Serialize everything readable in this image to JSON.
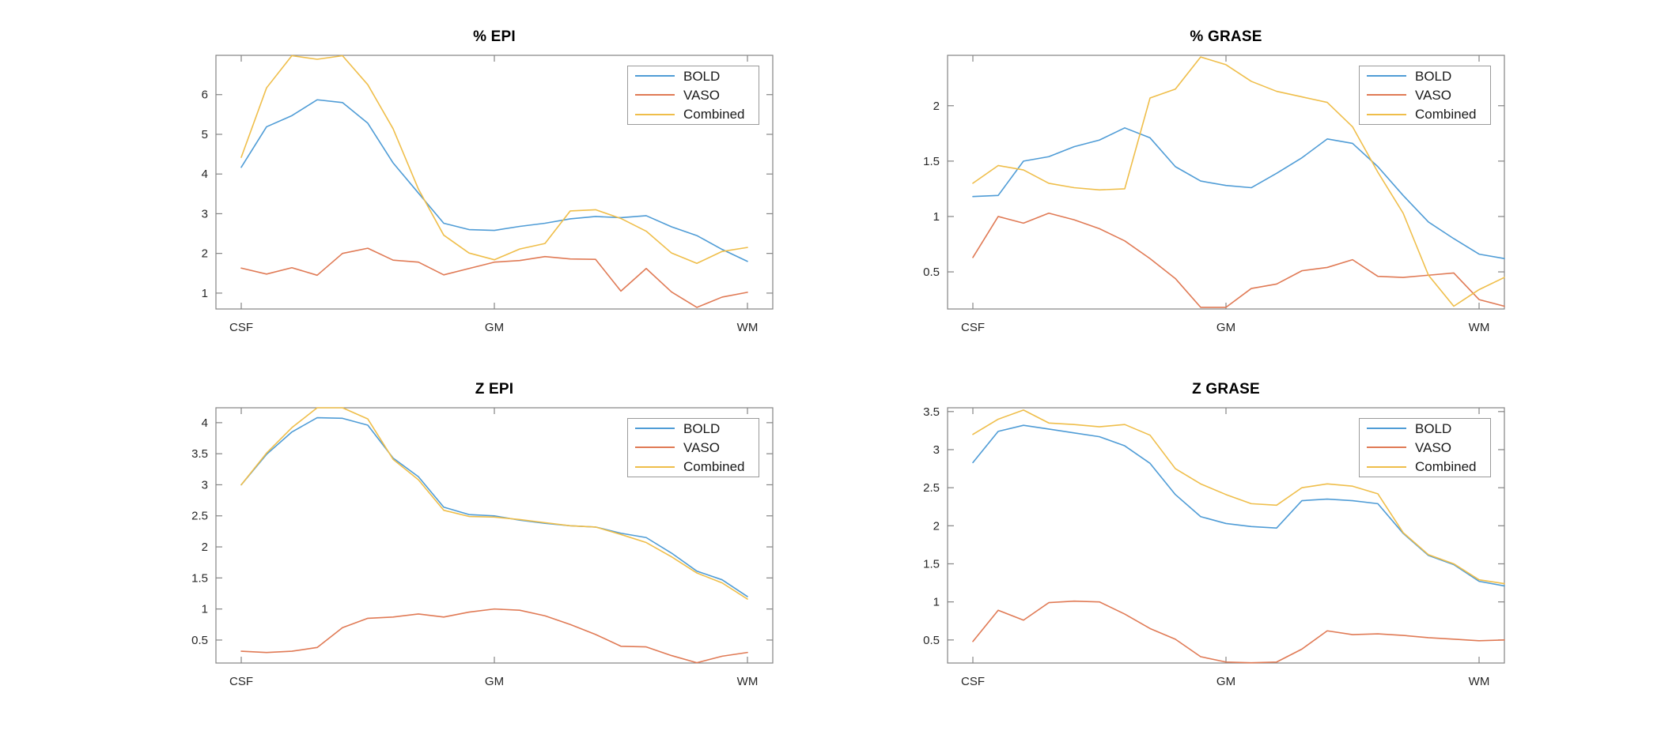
{
  "figure": {
    "background": "#ffffff",
    "axis_color": "#848484",
    "tick_label_color": "#262626",
    "title_color": "#000000",
    "legend_border_color": "#9a9a9a",
    "legend_labels": [
      "BOLD",
      "VASO",
      "Combined"
    ]
  },
  "chart_data": [
    {
      "type": "line",
      "title": "% EPI",
      "xlabel": "",
      "ylabel": "",
      "x_tick_labels": [
        "CSF",
        "GM",
        "WM"
      ],
      "x_tick_points": [
        1,
        11,
        21
      ],
      "xlim": [
        0,
        22
      ],
      "ylim": [
        0.6,
        6.99
      ],
      "y_ticks": [
        1,
        2,
        3,
        4,
        5,
        6
      ],
      "grid": false,
      "legend_position": "top-right",
      "series": [
        {
          "name": "BOLD",
          "color": "#4F9CD6",
          "values": [
            4.17,
            5.19,
            5.47,
            5.87,
            5.8,
            5.28,
            4.28,
            3.52,
            2.76,
            2.6,
            2.58,
            2.68,
            2.76,
            2.87,
            2.93,
            2.9,
            2.95,
            2.67,
            2.45,
            2.1,
            1.8
          ]
        },
        {
          "name": "VASO",
          "color": "#E07A55",
          "values": [
            1.63,
            1.48,
            1.64,
            1.45,
            2.0,
            2.13,
            1.83,
            1.78,
            1.46,
            1.62,
            1.78,
            1.82,
            1.92,
            1.86,
            1.85,
            1.05,
            1.62,
            1.03,
            0.64,
            0.9,
            1.02
          ]
        },
        {
          "name": "Combined",
          "color": "#EFBE4A",
          "values": [
            4.42,
            6.17,
            6.98,
            6.89,
            6.98,
            6.25,
            5.14,
            3.62,
            2.46,
            2.01,
            1.84,
            2.11,
            2.25,
            3.07,
            3.1,
            2.88,
            2.56,
            2.01,
            1.75,
            2.05,
            2.15
          ]
        }
      ]
    },
    {
      "type": "line",
      "title": "% GRASE",
      "xlabel": "",
      "ylabel": "",
      "x_tick_labels": [
        "CSF",
        "GM",
        "WM"
      ],
      "x_tick_points": [
        1,
        11,
        21
      ],
      "xlim": [
        0,
        22
      ],
      "ylim": [
        0.165,
        2.455
      ],
      "y_ticks": [
        0.5,
        1,
        1.5,
        2
      ],
      "grid": false,
      "legend_position": "top-right",
      "series": [
        {
          "name": "BOLD",
          "color": "#4F9CD6",
          "values": [
            1.18,
            1.19,
            1.5,
            1.54,
            1.63,
            1.69,
            1.8,
            1.71,
            1.45,
            1.32,
            1.28,
            1.26,
            1.39,
            1.53,
            1.7,
            1.66,
            1.45,
            1.19,
            0.95,
            0.8,
            0.66,
            0.62
          ]
        },
        {
          "name": "VASO",
          "color": "#E07A55",
          "values": [
            0.63,
            1.0,
            0.94,
            1.03,
            0.97,
            0.89,
            0.78,
            0.62,
            0.44,
            0.18,
            0.18,
            0.35,
            0.39,
            0.51,
            0.54,
            0.61,
            0.46,
            0.45,
            0.47,
            0.49,
            0.25,
            0.19
          ]
        },
        {
          "name": "Combined",
          "color": "#EFBE4A",
          "values": [
            1.3,
            1.46,
            1.42,
            1.3,
            1.26,
            1.24,
            1.25,
            2.07,
            2.15,
            2.44,
            2.37,
            2.22,
            2.13,
            2.08,
            2.03,
            1.81,
            1.4,
            1.03,
            0.47,
            0.19,
            0.34,
            0.45
          ]
        }
      ]
    },
    {
      "type": "line",
      "title": "Z EPI",
      "xlabel": "",
      "ylabel": "",
      "x_tick_labels": [
        "CSF",
        "GM",
        "WM"
      ],
      "x_tick_points": [
        1,
        11,
        21
      ],
      "xlim": [
        0,
        22
      ],
      "ylim": [
        0.13,
        4.24
      ],
      "y_ticks": [
        0.5,
        1,
        1.5,
        2,
        2.5,
        3,
        3.5,
        4
      ],
      "grid": false,
      "legend_position": "top-right",
      "series": [
        {
          "name": "BOLD",
          "color": "#4F9CD6",
          "values": [
            3.0,
            3.49,
            3.85,
            4.08,
            4.07,
            3.96,
            3.43,
            3.13,
            2.64,
            2.52,
            2.5,
            2.43,
            2.38,
            2.34,
            2.32,
            2.22,
            2.15,
            1.9,
            1.61,
            1.47,
            1.2
          ]
        },
        {
          "name": "VASO",
          "color": "#E07A55",
          "values": [
            0.32,
            0.3,
            0.32,
            0.38,
            0.7,
            0.85,
            0.87,
            0.92,
            0.87,
            0.95,
            1.0,
            0.98,
            0.89,
            0.75,
            0.59,
            0.4,
            0.39,
            0.25,
            0.135,
            0.24,
            0.3
          ]
        },
        {
          "name": "Combined",
          "color": "#EFBE4A",
          "values": [
            3.0,
            3.51,
            3.92,
            4.24,
            4.24,
            4.06,
            3.41,
            3.08,
            2.59,
            2.49,
            2.48,
            2.44,
            2.39,
            2.34,
            2.32,
            2.2,
            2.07,
            1.84,
            1.58,
            1.42,
            1.16
          ]
        }
      ]
    },
    {
      "type": "line",
      "title": "Z GRASE",
      "xlabel": "",
      "ylabel": "",
      "x_tick_labels": [
        "CSF",
        "GM",
        "WM"
      ],
      "x_tick_points": [
        1,
        11,
        21
      ],
      "xlim": [
        0,
        22
      ],
      "ylim": [
        0.197,
        3.55
      ],
      "y_ticks": [
        0.5,
        1,
        1.5,
        2,
        2.5,
        3,
        3.5
      ],
      "grid": false,
      "legend_position": "top-right",
      "series": [
        {
          "name": "BOLD",
          "color": "#4F9CD6",
          "values": [
            2.83,
            3.24,
            3.32,
            3.27,
            3.22,
            3.17,
            3.05,
            2.82,
            2.41,
            2.12,
            2.03,
            1.99,
            1.97,
            2.33,
            2.35,
            2.33,
            2.29,
            1.9,
            1.61,
            1.49,
            1.27,
            1.21
          ]
        },
        {
          "name": "VASO",
          "color": "#E07A55",
          "values": [
            0.48,
            0.89,
            0.76,
            0.99,
            1.01,
            1.0,
            0.84,
            0.65,
            0.51,
            0.28,
            0.21,
            0.2,
            0.21,
            0.38,
            0.62,
            0.57,
            0.58,
            0.56,
            0.53,
            0.51,
            0.49,
            0.5
          ]
        },
        {
          "name": "Combined",
          "color": "#EFBE4A",
          "values": [
            3.2,
            3.4,
            3.52,
            3.35,
            3.33,
            3.3,
            3.33,
            3.19,
            2.75,
            2.55,
            2.41,
            2.29,
            2.27,
            2.5,
            2.55,
            2.52,
            2.42,
            1.91,
            1.62,
            1.5,
            1.29,
            1.24
          ]
        }
      ]
    }
  ]
}
